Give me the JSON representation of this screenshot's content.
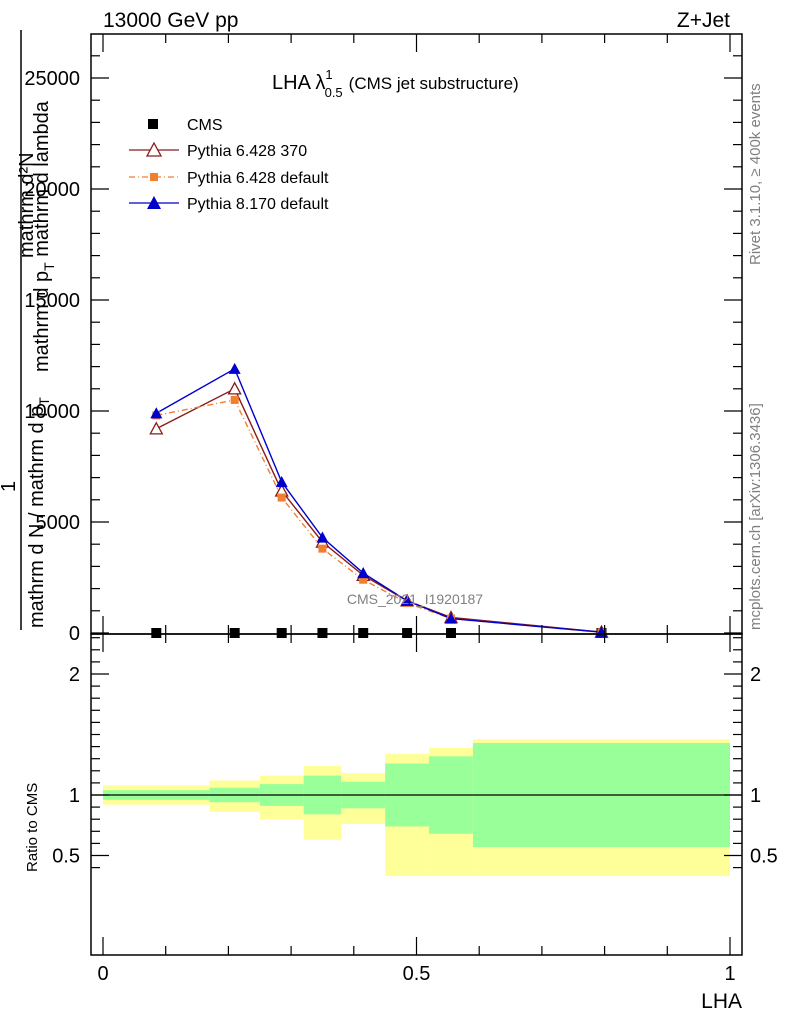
{
  "header": {
    "left": "13000 GeV pp",
    "right": "Z+Jet"
  },
  "side_labels": {
    "rivet": "Rivet 3.1.10, ≥ 400k events",
    "mcplots": "mcplots.cern.ch [arXiv:1306.3436]"
  },
  "watermark": "CMS_2021_I1920187",
  "colors": {
    "cms": "#000000",
    "py6_370": "#8b1a1a",
    "py6_default": "#f08030",
    "py8_default": "#0000cc",
    "band_outer": "#ffff99",
    "band_inner": "#99ff99"
  },
  "chart_data": [
    {
      "type": "line",
      "title": "LHA λ",
      "title_sup": "1",
      "title_sub": "0.5",
      "title_note": "(CMS jet substructure)",
      "ylabel_top": "mathrm d²N",
      "ylabel_top_tail": "mathrm d p",
      "ylabel_top_sub": "T",
      "ylabel_top_end": " mathrm d lambda",
      "ylabel_left": "1",
      "ylabel_bottom": "mathrm d N / mathrm d p",
      "ylabel_bottom_sub": "T",
      "xlim": [
        0,
        1
      ],
      "ylim": [
        0,
        25000
      ],
      "yticks": [
        {
          "value": 0,
          "label": "0"
        },
        {
          "value": 5000,
          "label": "5000"
        },
        {
          "value": 10000,
          "label": "10000"
        },
        {
          "value": 15000,
          "label": "15000"
        },
        {
          "value": 20000,
          "label": "20000"
        },
        {
          "value": 25000,
          "label": "25000"
        }
      ],
      "legend_position": "top-left",
      "series": [
        {
          "name": "CMS",
          "marker": "square",
          "x": [
            0.085,
            0.21,
            0.285,
            0.35,
            0.415,
            0.485,
            0.555,
            0.795
          ],
          "y": [
            0,
            0,
            0,
            0,
            0,
            0,
            0,
            0
          ]
        },
        {
          "name": "Pythia 6.428 370",
          "marker": "open-triangle",
          "x": [
            0.085,
            0.21,
            0.285,
            0.35,
            0.415,
            0.485,
            0.555,
            0.795
          ],
          "y": [
            9200,
            11000,
            6400,
            4100,
            2600,
            1450,
            700,
            40
          ]
        },
        {
          "name": "Pythia 6.428 default",
          "marker": "square-dashdot",
          "x": [
            0.085,
            0.21,
            0.285,
            0.35,
            0.415,
            0.485,
            0.555,
            0.795
          ],
          "y": [
            9800,
            10500,
            6100,
            3800,
            2400,
            1350,
            650,
            30
          ]
        },
        {
          "name": "Pythia 8.170 default",
          "marker": "filled-triangle",
          "x": [
            0.085,
            0.21,
            0.285,
            0.35,
            0.415,
            0.485,
            0.555,
            0.795
          ],
          "y": [
            9900,
            11900,
            6800,
            4300,
            2700,
            1450,
            650,
            35
          ]
        }
      ]
    },
    {
      "type": "area",
      "ylabel": "Ratio to CMS",
      "xlabel": "LHA",
      "xlim": [
        0,
        1
      ],
      "ylim": [
        0.33,
        2.33
      ],
      "reference_line": 1,
      "xticks": [
        {
          "value": 0,
          "label": "0"
        },
        {
          "value": 0.5,
          "label": "0.5"
        },
        {
          "value": 1,
          "label": "1"
        }
      ],
      "yticks": [
        {
          "value": 0.5,
          "label": "0.5"
        },
        {
          "value": 1,
          "label": "1"
        },
        {
          "value": 2,
          "label": "2"
        }
      ],
      "bins": [
        {
          "x0": 0.0,
          "x1": 0.17,
          "inner": [
            0.96,
            1.04
          ],
          "outer": [
            0.92,
            1.08
          ]
        },
        {
          "x0": 0.17,
          "x1": 0.25,
          "inner": [
            0.94,
            1.06
          ],
          "outer": [
            0.86,
            1.12
          ]
        },
        {
          "x0": 0.25,
          "x1": 0.32,
          "inner": [
            0.91,
            1.09
          ],
          "outer": [
            0.8,
            1.16
          ]
        },
        {
          "x0": 0.32,
          "x1": 0.38,
          "inner": [
            0.84,
            1.16
          ],
          "outer": [
            0.63,
            1.24
          ]
        },
        {
          "x0": 0.38,
          "x1": 0.45,
          "inner": [
            0.89,
            1.11
          ],
          "outer": [
            0.76,
            1.18
          ]
        },
        {
          "x0": 0.45,
          "x1": 0.52,
          "inner": [
            0.74,
            1.26
          ],
          "outer": [
            0.33,
            1.34
          ]
        },
        {
          "x0": 0.52,
          "x1": 0.59,
          "inner": [
            0.68,
            1.32
          ],
          "outer": [
            0.33,
            1.39
          ]
        },
        {
          "x0": 0.59,
          "x1": 1.0,
          "inner": [
            0.57,
            1.43
          ],
          "outer": [
            0.33,
            1.46
          ]
        }
      ]
    }
  ]
}
